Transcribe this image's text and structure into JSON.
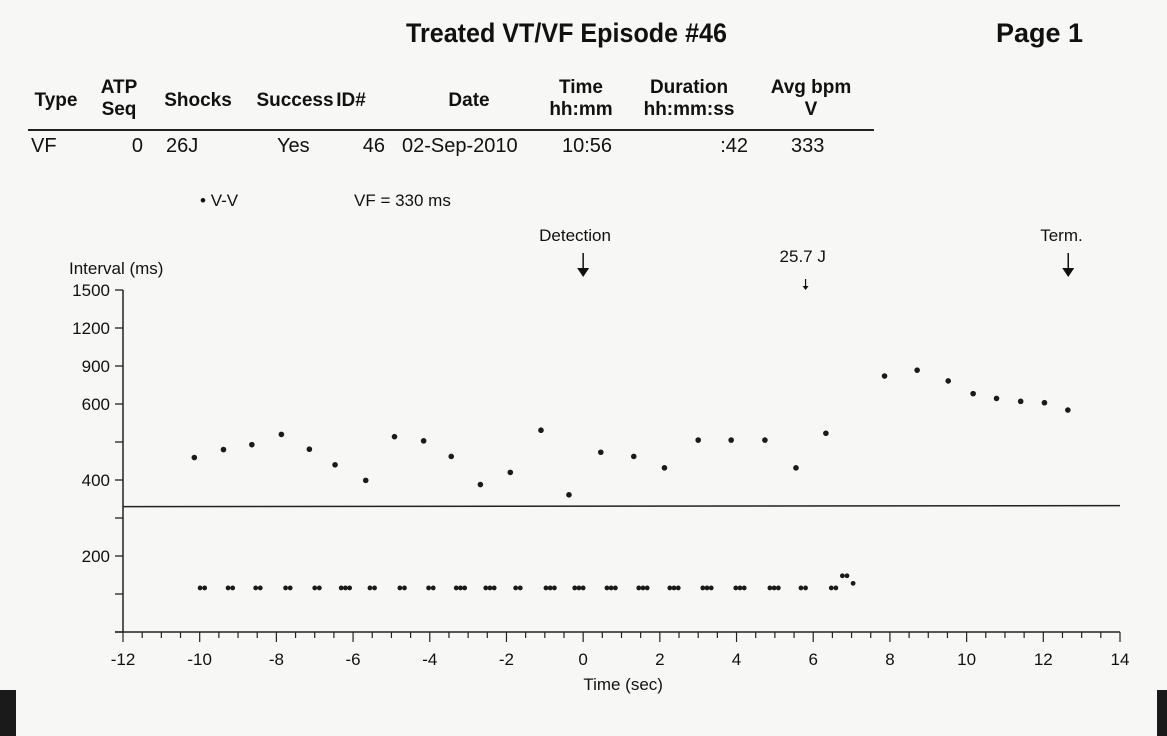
{
  "header": {
    "title": "Treated VT/VF Episode #46",
    "page_label": "Page  1"
  },
  "table": {
    "columns": [
      {
        "line1": "Type",
        "line2": ""
      },
      {
        "line1": "ATP",
        "line2": "Seq"
      },
      {
        "line1": "Shocks",
        "line2": ""
      },
      {
        "line1": "Success",
        "line2": ""
      },
      {
        "line1": "ID#",
        "line2": ""
      },
      {
        "line1": "Date",
        "line2": ""
      },
      {
        "line1": "Time",
        "line2": "hh:mm"
      },
      {
        "line1": "Duration",
        "line2": "hh:mm:ss"
      },
      {
        "line1": "Avg bpm",
        "line2": "V"
      }
    ],
    "row": [
      "VF",
      "0",
      "26J",
      "Yes",
      "46",
      "02-Sep-2010",
      "10:56",
      ":42",
      "333"
    ]
  },
  "legend": {
    "marker": "•",
    "series_label": "V-V",
    "threshold_label": "VF = 330 ms"
  },
  "chart_data": {
    "type": "scatter",
    "title": "",
    "xlabel": "Time (sec)",
    "ylabel": "Interval (ms)",
    "xlim": [
      -12,
      14
    ],
    "x_ticks": [
      -12,
      -10,
      -8,
      -6,
      -4,
      -2,
      0,
      2,
      4,
      6,
      8,
      10,
      12,
      14
    ],
    "x_minor_step": 0.5,
    "y_scale_ticks": [
      100,
      150,
      200,
      300,
      400,
      500,
      600,
      900,
      1200,
      1500
    ],
    "y_tick_labels": [
      200,
      400,
      600,
      900,
      1200,
      1500
    ],
    "threshold": {
      "label": "VF",
      "value": 330
    },
    "annotations": [
      {
        "label": "Detection",
        "x": 0,
        "style": "large-arrow"
      },
      {
        "label": "25.7 J",
        "x": 5.8,
        "style": "small-arrow"
      },
      {
        "label": "Term.",
        "x": 12.65,
        "style": "large-arrow"
      }
    ],
    "series": [
      {
        "name": "V-V",
        "x": [
          -10.14,
          -9.38,
          -8.64,
          -7.87,
          -7.14,
          -6.47,
          -5.67,
          -4.92,
          -4.16,
          -3.44,
          -2.68,
          -1.9,
          -1.1,
          -0.37,
          0.46,
          1.32,
          2.12,
          3.0,
          3.86,
          4.74,
          5.55,
          6.33,
          7.86,
          8.71,
          9.52,
          10.17,
          10.78,
          11.41,
          12.03,
          12.64
        ],
        "y": [
          459,
          480,
          493,
          520,
          481,
          440,
          399,
          514,
          503,
          462,
          388,
          420,
          531,
          361,
          473,
          462,
          432,
          505,
          505,
          505,
          432,
          523,
          821,
          867,
          782,
          682,
          644,
          621,
          610,
          584
        ]
      },
      {
        "name": "",
        "x": [
          -9.99,
          -9.87,
          -9.26,
          -9.14,
          -8.54,
          -8.42,
          -7.76,
          -7.64,
          -7.0,
          -6.88,
          -6.31,
          -6.2,
          -6.09,
          -5.56,
          -5.44,
          -4.78,
          -4.66,
          -4.03,
          -3.91,
          -3.31,
          -3.2,
          -3.09,
          -2.54,
          -2.43,
          -2.32,
          -1.76,
          -1.64,
          -0.97,
          -0.86,
          -0.75,
          -0.22,
          -0.11,
          0.0,
          0.62,
          0.73,
          0.84,
          1.45,
          1.56,
          1.67,
          2.26,
          2.37,
          2.48,
          3.12,
          3.23,
          3.34,
          3.98,
          4.09,
          4.2,
          4.87,
          4.98,
          5.09,
          5.68,
          5.8,
          6.47,
          6.59,
          6.76,
          6.88,
          7.04
        ],
        "y": [
          158,
          158,
          158,
          158,
          158,
          158,
          158,
          158,
          158,
          158,
          158,
          158,
          158,
          158,
          158,
          158,
          158,
          158,
          158,
          158,
          158,
          158,
          158,
          158,
          158,
          158,
          158,
          158,
          158,
          158,
          158,
          158,
          158,
          158,
          158,
          158,
          158,
          158,
          158,
          158,
          158,
          158,
          158,
          158,
          158,
          158,
          158,
          158,
          158,
          158,
          158,
          158,
          158,
          158,
          158,
          174,
          174,
          164
        ]
      }
    ]
  }
}
